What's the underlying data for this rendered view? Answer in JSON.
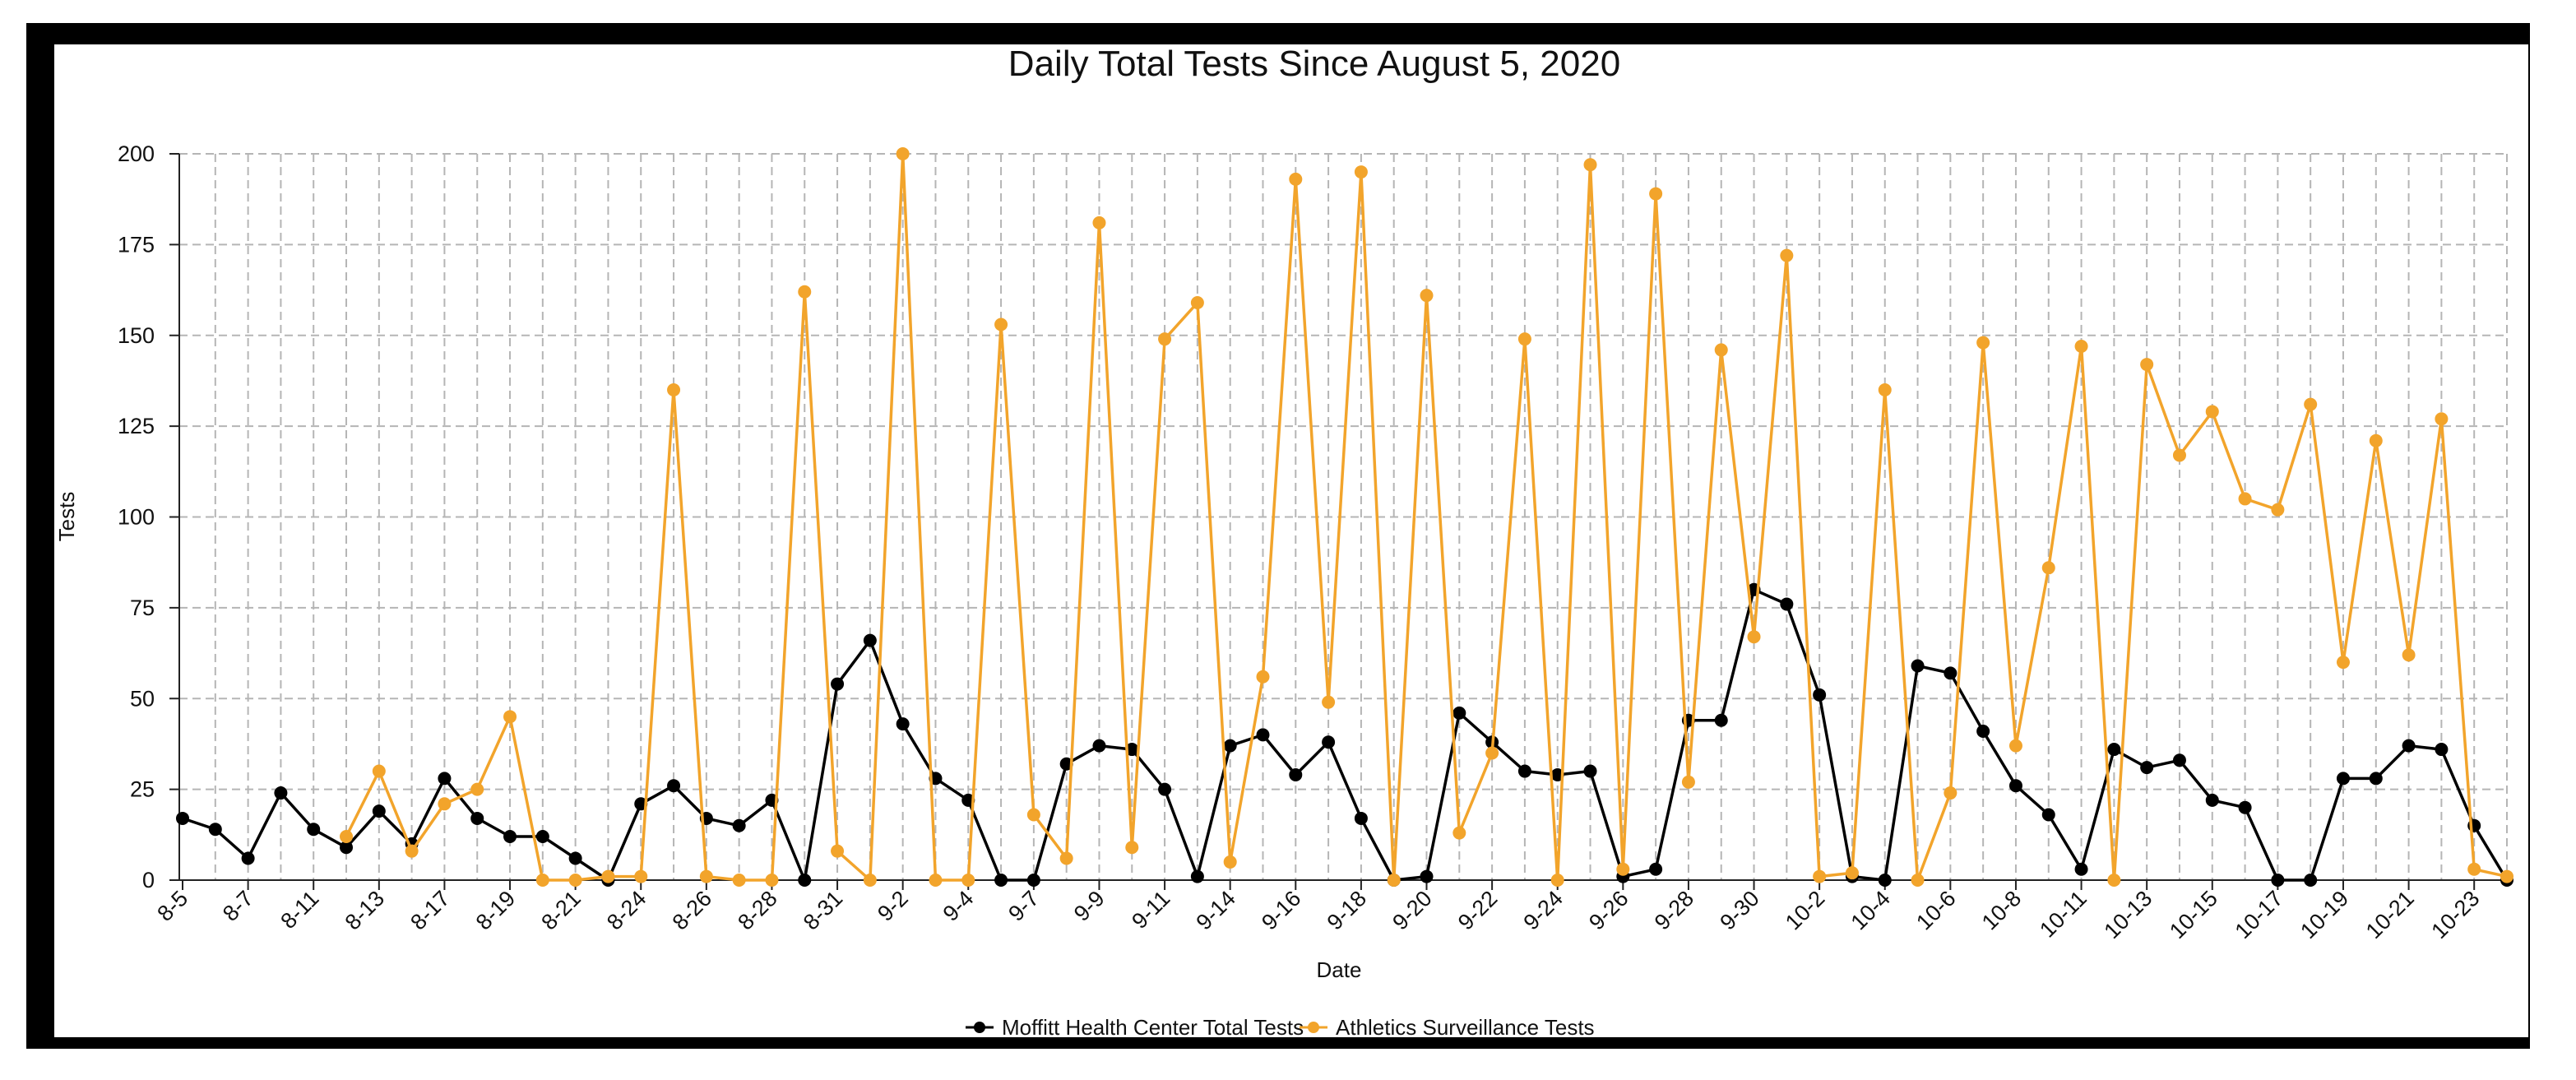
{
  "colors": {
    "frame": "#000000",
    "panel": "#ffffff",
    "series1": "#000000",
    "series2": "#f2a42b",
    "grid": "#b5b5b5"
  },
  "chart_data": {
    "type": "line",
    "title": "Daily Total Tests Since August 5, 2020",
    "xlabel": "Date",
    "ylabel": "Tests",
    "ylim": [
      0,
      200
    ],
    "yticks": [
      0,
      25,
      50,
      75,
      100,
      125,
      150,
      175,
      200
    ],
    "grid": true,
    "legend_position": "bottom",
    "categories": [
      "8-5",
      "8-6",
      "8-7",
      "8-10",
      "8-11",
      "8-12",
      "8-13",
      "8-14",
      "8-17",
      "8-18",
      "8-19",
      "8-20",
      "8-21",
      "8-22",
      "8-24",
      "8-25",
      "8-26",
      "8-27",
      "8-28",
      "8-29",
      "8-31",
      "9-1",
      "9-2",
      "9-3",
      "9-4",
      "9-5",
      "9-7",
      "9-8",
      "9-9",
      "9-10",
      "9-11",
      "9-12",
      "9-14",
      "9-15",
      "9-16",
      "9-17",
      "9-18",
      "9-19",
      "9-20",
      "9-21",
      "9-22",
      "9-23",
      "9-24",
      "9-25",
      "9-26",
      "9-27",
      "9-28",
      "9-29",
      "9-30",
      "10-1",
      "10-2",
      "10-3",
      "10-4",
      "10-5",
      "10-6",
      "10-7",
      "10-8",
      "10-9",
      "10-11",
      "10-12",
      "10-13",
      "10-14",
      "10-15",
      "10-16",
      "10-17",
      "10-18",
      "10-19",
      "10-20",
      "10-21",
      "10-22",
      "10-23",
      "10-24"
    ],
    "tick_labels": [
      "8-5",
      "8-7",
      "8-11",
      "8-13",
      "8-17",
      "8-19",
      "8-21",
      "8-24",
      "8-26",
      "8-28",
      "8-31",
      "9-2",
      "9-4",
      "9-7",
      "9-9",
      "9-11",
      "9-14",
      "9-16",
      "9-18",
      "9-20",
      "9-22",
      "9-24",
      "9-26",
      "9-28",
      "9-30",
      "10-2",
      "10-4",
      "10-6",
      "10-8",
      "10-11",
      "10-13",
      "10-15",
      "10-17",
      "10-19",
      "10-21",
      "10-23"
    ],
    "series": [
      {
        "name": "Moffitt Health Center Total Tests",
        "color": "#000000",
        "values": [
          17,
          14,
          6,
          24,
          14,
          9,
          19,
          10,
          28,
          17,
          12,
          12,
          6,
          0,
          21,
          26,
          17,
          15,
          22,
          0,
          54,
          66,
          43,
          28,
          22,
          0,
          0,
          32,
          37,
          36,
          25,
          1,
          37,
          40,
          29,
          38,
          17,
          0,
          1,
          46,
          38,
          30,
          29,
          30,
          1,
          3,
          44,
          44,
          80,
          76,
          51,
          1,
          0,
          59,
          57,
          41,
          26,
          18,
          3,
          36,
          31,
          33,
          22,
          20,
          0,
          0,
          28,
          28,
          37,
          36,
          15,
          0
        ]
      },
      {
        "name": "Athletics Surveillance Tests",
        "color": "#f2a42b",
        "values": [
          null,
          null,
          null,
          null,
          null,
          12,
          30,
          8,
          21,
          25,
          45,
          0,
          0,
          1,
          1,
          135,
          1,
          0,
          0,
          162,
          8,
          0,
          200,
          0,
          0,
          153,
          18,
          6,
          181,
          9,
          149,
          159,
          5,
          56,
          193,
          49,
          195,
          0,
          161,
          13,
          35,
          149,
          0,
          197,
          3,
          189,
          27,
          146,
          67,
          172,
          1,
          2,
          135,
          0,
          24,
          148,
          37,
          86,
          147,
          0,
          142,
          117,
          129,
          105,
          102,
          131,
          60,
          121,
          62,
          127,
          3,
          1
        ]
      }
    ]
  }
}
